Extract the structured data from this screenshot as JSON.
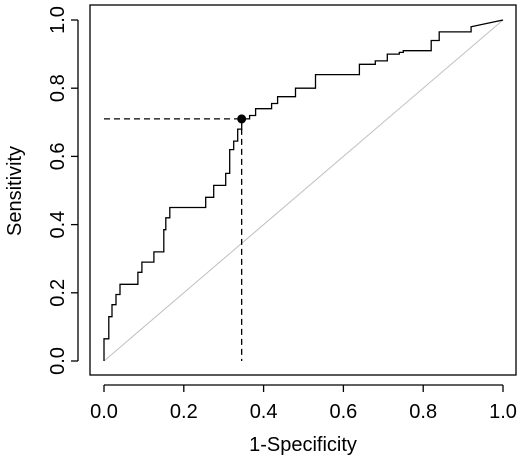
{
  "chart_data": {
    "type": "line",
    "title": "",
    "xlabel": "1-Specificity",
    "ylabel": "Sensitivity",
    "xlim": [
      0.0,
      1.0
    ],
    "ylim": [
      0.0,
      1.0
    ],
    "x_ticks": [
      "0.0",
      "0.2",
      "0.4",
      "0.6",
      "0.8",
      "1.0"
    ],
    "y_ticks": [
      "0.0",
      "0.2",
      "0.4",
      "0.6",
      "0.8",
      "1.0"
    ],
    "grid": false,
    "legend": "none",
    "series": [
      {
        "style": "step",
        "color": "#000000",
        "points": [
          [
            0.0,
            0.0
          ],
          [
            0.0,
            0.065
          ],
          [
            0.012,
            0.065
          ],
          [
            0.012,
            0.13
          ],
          [
            0.02,
            0.13
          ],
          [
            0.02,
            0.165
          ],
          [
            0.03,
            0.165
          ],
          [
            0.03,
            0.195
          ],
          [
            0.04,
            0.195
          ],
          [
            0.04,
            0.225
          ],
          [
            0.085,
            0.225
          ],
          [
            0.085,
            0.26
          ],
          [
            0.095,
            0.26
          ],
          [
            0.095,
            0.29
          ],
          [
            0.125,
            0.29
          ],
          [
            0.125,
            0.32
          ],
          [
            0.15,
            0.32
          ],
          [
            0.15,
            0.385
          ],
          [
            0.155,
            0.385
          ],
          [
            0.155,
            0.42
          ],
          [
            0.165,
            0.42
          ],
          [
            0.165,
            0.45
          ],
          [
            0.255,
            0.45
          ],
          [
            0.255,
            0.48
          ],
          [
            0.275,
            0.48
          ],
          [
            0.275,
            0.515
          ],
          [
            0.305,
            0.515
          ],
          [
            0.305,
            0.55
          ],
          [
            0.315,
            0.55
          ],
          [
            0.315,
            0.62
          ],
          [
            0.325,
            0.62
          ],
          [
            0.325,
            0.645
          ],
          [
            0.335,
            0.645
          ],
          [
            0.335,
            0.68
          ],
          [
            0.345,
            0.68
          ],
          [
            0.345,
            0.71
          ],
          [
            0.365,
            0.71
          ],
          [
            0.365,
            0.72
          ],
          [
            0.38,
            0.72
          ],
          [
            0.38,
            0.74
          ],
          [
            0.42,
            0.74
          ],
          [
            0.42,
            0.755
          ],
          [
            0.435,
            0.755
          ],
          [
            0.435,
            0.775
          ],
          [
            0.48,
            0.775
          ],
          [
            0.48,
            0.8
          ],
          [
            0.53,
            0.8
          ],
          [
            0.53,
            0.84
          ],
          [
            0.64,
            0.84
          ],
          [
            0.64,
            0.87
          ],
          [
            0.68,
            0.87
          ],
          [
            0.68,
            0.88
          ],
          [
            0.71,
            0.88
          ],
          [
            0.71,
            0.9
          ],
          [
            0.74,
            0.9
          ],
          [
            0.74,
            0.905
          ],
          [
            0.75,
            0.905
          ],
          [
            0.75,
            0.91
          ],
          [
            0.82,
            0.91
          ],
          [
            0.82,
            0.94
          ],
          [
            0.84,
            0.94
          ],
          [
            0.84,
            0.965
          ],
          [
            0.92,
            0.965
          ],
          [
            0.92,
            0.98
          ],
          [
            1.0,
            1.0
          ]
        ]
      },
      {
        "style": "reference",
        "color": "#c0c0c0",
        "points": [
          [
            0.0,
            0.0
          ],
          [
            1.0,
            1.0
          ]
        ]
      }
    ],
    "cutoff_point": {
      "x": 0.345,
      "y": 0.71
    }
  }
}
